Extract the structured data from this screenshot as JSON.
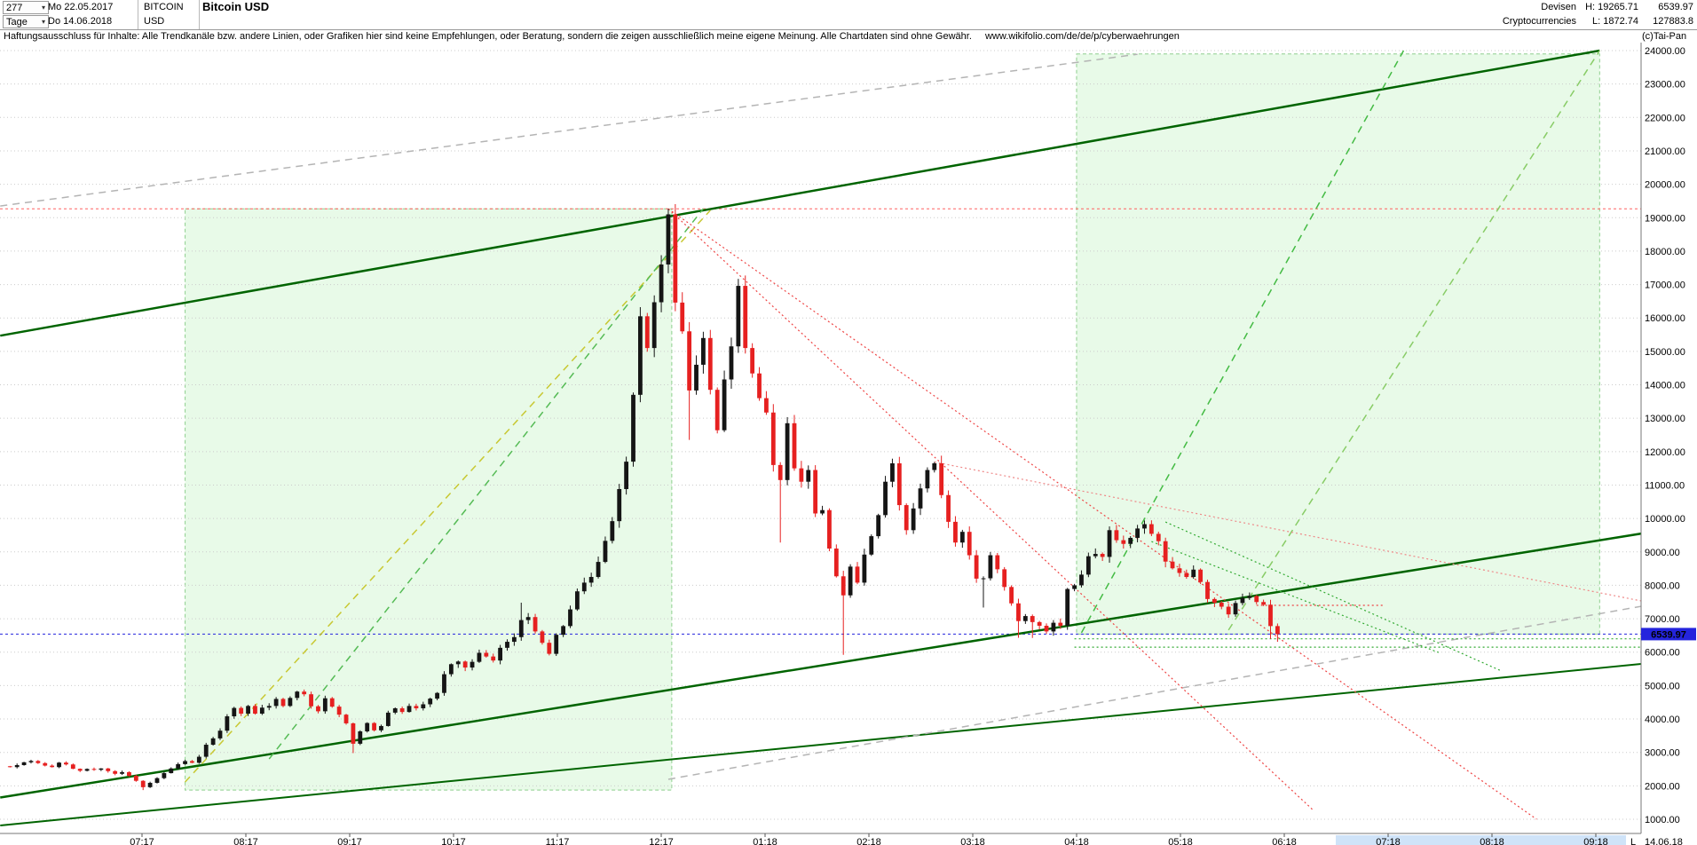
{
  "header": {
    "bars_count": "277",
    "period": "Tage",
    "dropdown_glyph": "▾",
    "date_from": "Mo 22.05.2017",
    "date_to": "Do 14.06.2018",
    "symbol": "BITCOIN",
    "currency": "USD",
    "title": "Bitcoin USD",
    "market_1": "Devisen",
    "market_2": "Cryptocurrencies",
    "high": "H: 19265.71",
    "low": "L: 1872.74",
    "last": "6539.97",
    "turnover": "127883.8",
    "copyright": "(c)Tai-Pan"
  },
  "disclaimer": {
    "text": "Haftungsausschluss für Inhalte: Alle Trendkanäle bzw. andere Linien, oder Grafiken hier sind keine Empfehlungen, oder Beratung, sondern die zeigen ausschließlich meine eigene Meinung. Alle Chartdaten sind ohne Gewähr.",
    "link": "www.wikifolio.com/de/de/p/cyberwaehrungen"
  },
  "chart_data": {
    "type": "candlestick",
    "title": "Bitcoin USD",
    "last_price": 6539.97,
    "period_high": 19265.71,
    "period_low": 1872.74,
    "y_axis": {
      "min": 1000,
      "max": 24000,
      "step": 1000
    },
    "x_axis": {
      "labels": [
        "07:17",
        "08:17",
        "09:17",
        "10:17",
        "11:17",
        "12:17",
        "01:18",
        "02:18",
        "03:18",
        "04:18",
        "05:18",
        "06:18",
        "07:18",
        "08:18",
        "09:18"
      ],
      "future_labels_from": "07:18",
      "last_trade_marker": "L",
      "last_date": "14.06.18"
    },
    "closes": [
      2560,
      2620,
      2705,
      2745,
      2680,
      2605,
      2560,
      2695,
      2640,
      2510,
      2450,
      2505,
      2480,
      2520,
      2440,
      2360,
      2410,
      2300,
      2150,
      1960,
      2090,
      2230,
      2380,
      2520,
      2650,
      2740,
      2690,
      2870,
      3230,
      3420,
      3650,
      4080,
      4330,
      4160,
      4390,
      4160,
      4340,
      4390,
      4600,
      4390,
      4630,
      4820,
      4740,
      4380,
      4230,
      4620,
      4370,
      4130,
      3870,
      3260,
      3630,
      3880,
      3660,
      3790,
      4190,
      4320,
      4210,
      4390,
      4320,
      4440,
      4610,
      4780,
      5340,
      5640,
      5720,
      5540,
      5710,
      5980,
      5870,
      5750,
      6130,
      6310,
      6450,
      6960,
      7050,
      6620,
      6280,
      5950,
      6520,
      6780,
      7280,
      7820,
      8080,
      8250,
      8700,
      9330,
      9920,
      10880,
      11700,
      13700,
      16050,
      15100,
      16470,
      17600,
      19100,
      16460,
      15600,
      13830,
      14600,
      15400,
      13850,
      12640,
      14160,
      15150,
      16960,
      15100,
      14340,
      13600,
      13170,
      11600,
      11150,
      12850,
      11500,
      11100,
      11450,
      10150,
      10250,
      9100,
      8270,
      7700,
      8560,
      8080,
      8920,
      9470,
      10100,
      11100,
      11650,
      10400,
      9650,
      10300,
      10900,
      11450,
      11650,
      10700,
      9900,
      9280,
      9600,
      8900,
      8200,
      8210,
      8900,
      8480,
      7950,
      7460,
      6930,
      7080,
      6900,
      6790,
      6620,
      6880,
      6790,
      7890,
      8000,
      8320,
      8870,
      8940,
      8850,
      9650,
      9350,
      9240,
      9420,
      9700,
      9830,
      9540,
      9320,
      8710,
      8510,
      8370,
      8250,
      8470,
      8100,
      7590,
      7480,
      7360,
      7130,
      7470,
      7620,
      7680,
      7500,
      7420,
      6780,
      6539.97
    ],
    "wick_extremes": [
      [
        19,
        "l",
        1872.74
      ],
      [
        49,
        "l",
        2980
      ],
      [
        73,
        "h",
        7480
      ],
      [
        94,
        "h",
        19265.71
      ],
      [
        97,
        "l",
        12350
      ],
      [
        104,
        "h",
        17170
      ],
      [
        110,
        "l",
        9280
      ],
      [
        119,
        "l",
        5920
      ],
      [
        126,
        "h",
        11790
      ],
      [
        132,
        "h",
        11690
      ],
      [
        139,
        "l",
        7335
      ],
      [
        144,
        "l",
        6430
      ],
      [
        146,
        "l",
        6425
      ],
      [
        162,
        "h",
        9940
      ],
      [
        180,
        "l",
        6390
      ],
      [
        181,
        "l",
        6310
      ]
    ],
    "overlays": {
      "trend_lines": [
        {
          "name": "upper-channel-line",
          "color": "#006400",
          "width": 2.5,
          "style": "solid",
          "pts": [
            [
              -1.4,
              15470
            ],
            [
              227,
              24000
            ]
          ]
        },
        {
          "name": "lower-channel-line",
          "color": "#006400",
          "width": 2.5,
          "style": "solid",
          "pts": [
            [
              -1.4,
              1650
            ],
            [
              233,
              9550
            ]
          ]
        },
        {
          "name": "base-support-line",
          "color": "#006400",
          "width": 2,
          "style": "solid",
          "pts": [
            [
              -1.4,
              815
            ],
            [
              233,
              5650
            ]
          ]
        },
        {
          "name": "gray-parallel-upper",
          "color": "#b4b4b4",
          "width": 1.5,
          "style": "dash",
          "pts": [
            [
              -1.4,
              19350
            ],
            [
              161,
              23890
            ]
          ]
        },
        {
          "name": "gray-parallel-lower",
          "color": "#b4b4b4",
          "width": 1.5,
          "style": "dash",
          "pts": [
            [
              94,
              2195
            ],
            [
              233,
              7375
            ]
          ]
        },
        {
          "name": "rally-fan-yellow",
          "color": "#c8c832",
          "width": 1.5,
          "style": "dash",
          "pts": [
            [
              25,
              2115
            ],
            [
              100,
              19220
            ]
          ]
        },
        {
          "name": "rally-fan-green",
          "color": "#55bb55",
          "width": 1.5,
          "style": "dash",
          "pts": [
            [
              37,
              2805
            ],
            [
              99,
              19270
            ]
          ]
        },
        {
          "name": "projection-steep-1",
          "color": "#44bb44",
          "width": 1.5,
          "style": "dash",
          "pts": [
            [
              153,
              6580
            ],
            [
              199,
              24000
            ]
          ]
        },
        {
          "name": "projection-steep-2",
          "color": "#88cc66",
          "width": 1.5,
          "style": "dash",
          "pts": [
            [
              174,
              6660
            ],
            [
              227,
              24000
            ]
          ]
        },
        {
          "name": "downtrend-from-top-1",
          "color": "#ee4444",
          "width": 1.2,
          "style": "dot",
          "pts": [
            [
              94,
              19265
            ],
            [
              186,
              1290
            ]
          ]
        },
        {
          "name": "downtrend-from-top-2",
          "color": "#ee4444",
          "width": 1.2,
          "style": "dot",
          "pts": [
            [
              94,
              19265
            ],
            [
              218,
              1000
            ]
          ]
        },
        {
          "name": "downtrend-shallow",
          "color": "#ee8888",
          "width": 1.2,
          "style": "dot",
          "pts": [
            [
              132,
              11690
            ],
            [
              233,
              7530
            ]
          ]
        },
        {
          "name": "may-downtrend-1",
          "color": "#33aa33",
          "width": 1.2,
          "style": "dot",
          "pts": [
            [
              165,
              9895
            ],
            [
              213,
              5435
            ]
          ]
        },
        {
          "name": "may-downtrend-2",
          "color": "#33aa33",
          "width": 1.2,
          "style": "dot",
          "pts": [
            [
              163,
              9310
            ],
            [
              204,
              5990
            ]
          ]
        },
        {
          "name": "stop-level-dotted",
          "color": "#ee4444",
          "width": 1.2,
          "style": "dot",
          "pts": [
            [
              178,
              7400
            ],
            [
              196,
              7400
            ]
          ]
        },
        {
          "name": "support-dotted-1",
          "color": "#33aa33",
          "width": 1.2,
          "style": "dot",
          "pts": [
            [
              152,
              6150
            ],
            [
              233,
              6150
            ]
          ]
        },
        {
          "name": "support-dotted-2",
          "color": "#33aa33",
          "width": 1.2,
          "style": "dot",
          "pts": [
            [
              152,
              6400
            ],
            [
              233,
              6400
            ]
          ]
        }
      ],
      "h_levels": [
        {
          "name": "period-high-level",
          "price": 19265.71,
          "color": "#ff6060",
          "tag": false
        },
        {
          "name": "last-price-level",
          "price": 6539.97,
          "color": "#2424dd",
          "tag": true
        }
      ],
      "boxes": [
        {
          "name": "accumulation-box",
          "i0": 25,
          "i1": 94.5,
          "p0": 1872.74,
          "p1": 19265.71
        },
        {
          "name": "projection-box",
          "i0": 152.3,
          "i1": 227,
          "p0": 6540,
          "p1": 23900
        }
      ]
    },
    "colors": {
      "up": "#151515",
      "down": "#e62020",
      "grid": "#cbcbcb",
      "box_fill": "rgba(185,240,185,0.33)",
      "box_border": "rgba(60,170,60,0.55)",
      "last_price": "#2424dd",
      "future_band": "#cfe3f8",
      "axis": "#777777"
    }
  }
}
